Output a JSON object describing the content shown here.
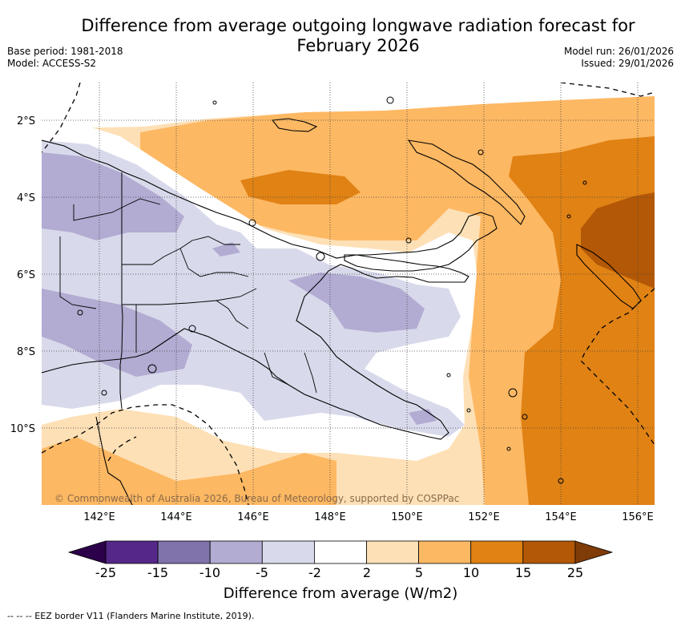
{
  "title_line1": "Difference from average outgoing longwave radiation forecast for",
  "title_line2": "February 2026",
  "base_period": "Base period: 1981-2018",
  "model": "Model: ACCESS-S2",
  "model_run": "Model run: 26/01/2026",
  "issued": "Issued: 29/01/2026",
  "copyright": "© Commonwealth of Australia 2026, Bureau of Meteorology, supported by COSPPac",
  "lat_labels": [
    "2°S",
    "4°S",
    "6°S",
    "8°S",
    "10°S"
  ],
  "lon_labels": [
    "142°E",
    "144°E",
    "146°E",
    "148°E",
    "150°E",
    "152°E",
    "154°E",
    "156°E"
  ],
  "legend": {
    "title": "Difference from average (W/m2)",
    "ticks": [
      "-25",
      "-15",
      "-10",
      "-5",
      "-2",
      "2",
      "5",
      "10",
      "15",
      "25"
    ],
    "colors": [
      "#2d004b",
      "#542788",
      "#8073ac",
      "#b2abd2",
      "#d8daeb",
      "#ffffff",
      "#fee0b6",
      "#fdb863",
      "#e08214",
      "#b35806",
      "#7f3b08"
    ]
  },
  "eez_note": "-- -- -- EEZ border V11 (Flanders Marine Institute, 2019)."
}
